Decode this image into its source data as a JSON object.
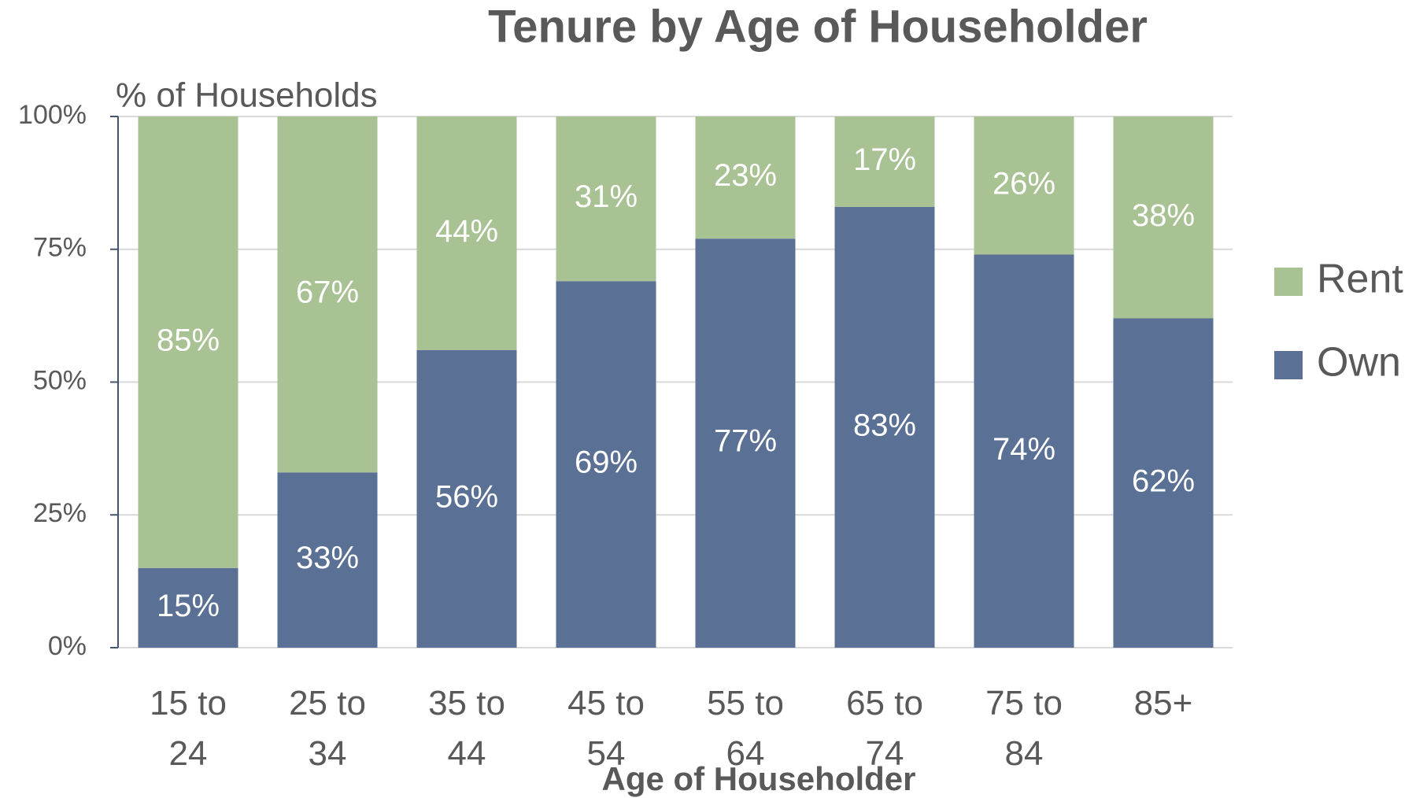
{
  "chart_data": {
    "type": "stacked_bar",
    "title": "Tenure by Age of Householder",
    "y_label": "% of Households",
    "x_label": "Age of Householder",
    "categories": [
      "15 to 24",
      "25 to 34",
      "35 to 44",
      "45 to 54",
      "55 to 64",
      "65 to 74",
      "75 to 84",
      "85+"
    ],
    "series": [
      {
        "name": "Own",
        "color": "#5a7094",
        "values": [
          15,
          33,
          56,
          69,
          77,
          83,
          74,
          62
        ],
        "value_labels": [
          "15%",
          "33%",
          "56%",
          "69%",
          "77%",
          "83%",
          "74%",
          "62%"
        ]
      },
      {
        "name": "Rent",
        "color": "#a9c294",
        "values": [
          85,
          67,
          44,
          31,
          23,
          17,
          26,
          38
        ],
        "value_labels": [
          "85%",
          "67%",
          "44%",
          "31%",
          "23%",
          "17%",
          "26%",
          "38%"
        ]
      }
    ],
    "ylim": [
      0,
      100
    ],
    "yticks": [
      {
        "value": 0,
        "label": "0%"
      },
      {
        "value": 25,
        "label": "25%"
      },
      {
        "value": 50,
        "label": "50%"
      },
      {
        "value": 75,
        "label": "75%"
      },
      {
        "value": 100,
        "label": "100%"
      }
    ],
    "grid": true,
    "legend": "right"
  }
}
